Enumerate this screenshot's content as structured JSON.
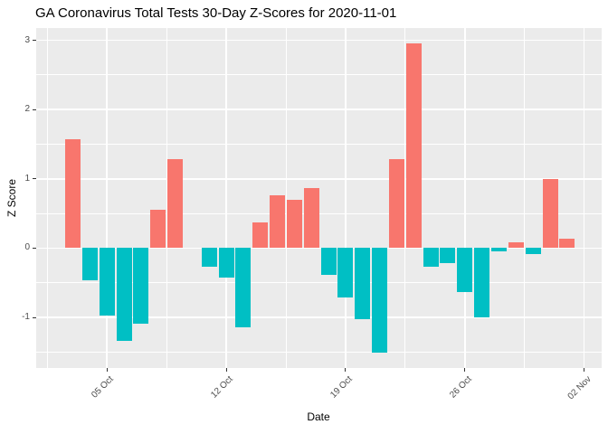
{
  "title": "GA Coronavirus Total Tests 30-Day Z-Scores for 2020-11-01",
  "chart_data": {
    "type": "bar",
    "title": "GA Coronavirus Total Tests 30-Day Z-Scores for 2020-11-01",
    "xlabel": "Date",
    "ylabel": "Z Score",
    "ylim": [
      -1.73,
      3.17
    ],
    "grid": true,
    "legend": false,
    "categories": [
      "2020-10-03",
      "2020-10-04",
      "2020-10-05",
      "2020-10-06",
      "2020-10-07",
      "2020-10-08",
      "2020-10-09",
      "2020-10-10",
      "2020-10-11",
      "2020-10-12",
      "2020-10-13",
      "2020-10-14",
      "2020-10-15",
      "2020-10-16",
      "2020-10-17",
      "2020-10-18",
      "2020-10-19",
      "2020-10-20",
      "2020-10-21",
      "2020-10-22",
      "2020-10-23",
      "2020-10-24",
      "2020-10-25",
      "2020-10-26",
      "2020-10-27",
      "2020-10-28",
      "2020-10-29",
      "2020-10-30",
      "2020-10-31",
      "2020-11-01"
    ],
    "values": [
      1.57,
      -0.46,
      -0.97,
      -1.34,
      -1.09,
      0.55,
      1.29,
      0,
      -0.27,
      -0.43,
      -1.15,
      0.37,
      0.76,
      0.7,
      0.87,
      -0.39,
      -0.71,
      -1.02,
      -1.51,
      1.28,
      2.95,
      -0.27,
      -0.22,
      -0.64,
      -1.0,
      -0.05,
      0.08,
      -0.08,
      1.0,
      0.13
    ],
    "y_major_ticks": [
      "3",
      "2",
      "1",
      "0",
      "-1"
    ],
    "y_major_values": [
      3,
      2,
      1,
      0,
      -1
    ],
    "y_minor_values": [
      2.5,
      1.5,
      0.5,
      -0.5,
      -1.5
    ],
    "x_tick_labels": [
      "05 Oct",
      "12 Oct",
      "19 Oct",
      "26 Oct",
      "02 Nov"
    ],
    "colors": {
      "positive_bar": "#F8766D",
      "negative_bar": "#00BFC4",
      "panel_background": "#EBEBEB",
      "gridline": "#FFFFFF",
      "axis_text": "#4D4D4D",
      "tick_mark": "#333333",
      "title_text": "#000000"
    }
  }
}
